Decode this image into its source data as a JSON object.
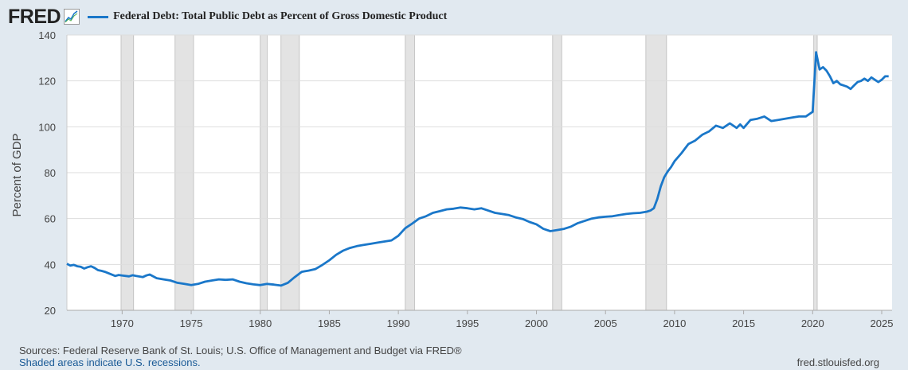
{
  "header": {
    "logo_text": "FRED",
    "legend_label": "Federal Debt: Total Public Debt as Percent of Gross Domestic Product"
  },
  "footer": {
    "sources": "Sources: Federal Reserve Bank of St. Louis; U.S. Office of Management and Budget via FRED®",
    "recessions_note": "Shaded areas indicate U.S. recessions.",
    "site": "fred.stlouisfed.org"
  },
  "colors": {
    "line": "#1a77c9",
    "recession": "#e3e3e3",
    "grid": "#dddddd"
  },
  "chart_data": {
    "type": "line",
    "title": "Federal Debt: Total Public Debt as Percent of Gross Domestic Product",
    "xlabel": "",
    "ylabel": "Percent of GDP",
    "xlim": [
      1966.0,
      2025.75
    ],
    "ylim": [
      20,
      140
    ],
    "yticks": [
      20,
      40,
      60,
      80,
      100,
      120,
      140
    ],
    "xticks": [
      1970,
      1975,
      1980,
      1985,
      1990,
      1995,
      2000,
      2005,
      2010,
      2015,
      2020,
      2025
    ],
    "grid": true,
    "recessions": [
      [
        1969.92,
        1970.83
      ],
      [
        1973.83,
        1975.17
      ],
      [
        1980.0,
        1980.5
      ],
      [
        1981.5,
        1982.83
      ],
      [
        1990.5,
        1991.17
      ],
      [
        2001.17,
        2001.83
      ],
      [
        2007.92,
        2009.42
      ],
      [
        2020.08,
        2020.33
      ]
    ],
    "series": [
      {
        "name": "Federal Debt: Total Public Debt as Percent of Gross Domestic Product",
        "x": [
          1966.0,
          1966.25,
          1966.5,
          1966.75,
          1967.0,
          1967.25,
          1967.5,
          1967.75,
          1968.0,
          1968.25,
          1968.5,
          1968.75,
          1969.0,
          1969.5,
          1969.75,
          1970.0,
          1970.5,
          1970.75,
          1971.0,
          1971.5,
          1971.75,
          1972.0,
          1972.5,
          1973.0,
          1973.5,
          1974.0,
          1974.5,
          1975.0,
          1975.5,
          1976.0,
          1976.5,
          1977.0,
          1977.5,
          1978.0,
          1978.5,
          1979.0,
          1979.5,
          1980.0,
          1980.5,
          1981.0,
          1981.5,
          1982.0,
          1982.5,
          1983.0,
          1983.5,
          1984.0,
          1984.5,
          1985.0,
          1985.5,
          1986.0,
          1986.5,
          1987.0,
          1987.5,
          1988.0,
          1988.5,
          1989.0,
          1989.5,
          1990.0,
          1990.5,
          1991.0,
          1991.5,
          1992.0,
          1992.5,
          1993.0,
          1993.5,
          1994.0,
          1994.5,
          1995.0,
          1995.5,
          1996.0,
          1996.5,
          1997.0,
          1997.5,
          1998.0,
          1998.5,
          1999.0,
          1999.5,
          2000.0,
          2000.5,
          2001.0,
          2001.5,
          2002.0,
          2002.5,
          2003.0,
          2003.5,
          2004.0,
          2004.5,
          2005.0,
          2005.5,
          2006.0,
          2006.5,
          2007.0,
          2007.5,
          2008.0,
          2008.25,
          2008.5,
          2008.75,
          2009.0,
          2009.25,
          2009.5,
          2009.75,
          2010.0,
          2010.5,
          2011.0,
          2011.5,
          2012.0,
          2012.5,
          2013.0,
          2013.5,
          2014.0,
          2014.25,
          2014.5,
          2014.75,
          2015.0,
          2015.5,
          2016.0,
          2016.25,
          2016.5,
          2017.0,
          2017.5,
          2018.0,
          2018.5,
          2019.0,
          2019.5,
          2020.0,
          2020.25,
          2020.5,
          2020.75,
          2021.0,
          2021.25,
          2021.5,
          2021.75,
          2022.0,
          2022.25,
          2022.5,
          2022.75,
          2023.0,
          2023.25,
          2023.5,
          2023.75,
          2024.0,
          2024.25,
          2024.5,
          2024.75,
          2025.0,
          2025.25,
          2025.5
        ],
        "values": [
          40.3,
          39.5,
          39.8,
          39.2,
          39.0,
          38.2,
          38.8,
          39.2,
          38.5,
          37.5,
          37.2,
          36.8,
          36.2,
          35.0,
          35.4,
          35.2,
          34.8,
          35.3,
          35.0,
          34.5,
          35.2,
          35.6,
          34.0,
          33.5,
          33.0,
          32.0,
          31.5,
          31.0,
          31.5,
          32.5,
          33.0,
          33.5,
          33.3,
          33.5,
          32.5,
          31.8,
          31.3,
          31.0,
          31.5,
          31.2,
          30.8,
          32.0,
          34.5,
          36.8,
          37.3,
          38.0,
          39.8,
          41.8,
          44.2,
          46.0,
          47.2,
          48.0,
          48.5,
          49.0,
          49.5,
          50.0,
          50.5,
          52.5,
          55.8,
          57.8,
          60.0,
          61.0,
          62.5,
          63.2,
          64.0,
          64.3,
          64.8,
          64.5,
          64.0,
          64.5,
          63.5,
          62.5,
          62.0,
          61.5,
          60.5,
          59.8,
          58.5,
          57.5,
          55.5,
          54.5,
          55.0,
          55.5,
          56.5,
          58.0,
          59.0,
          60.0,
          60.5,
          60.8,
          61.0,
          61.5,
          62.0,
          62.3,
          62.5,
          63.0,
          63.5,
          64.5,
          68.5,
          74.0,
          78.0,
          80.5,
          82.5,
          85.0,
          88.5,
          92.5,
          94.0,
          96.5,
          98.0,
          100.5,
          99.5,
          101.5,
          100.5,
          99.5,
          101.0,
          99.5,
          103.0,
          103.5,
          104.0,
          104.5,
          102.5,
          103.0,
          103.5,
          104.0,
          104.5,
          104.5,
          106.5,
          132.5,
          125.0,
          126.0,
          124.5,
          122.0,
          119.0,
          120.0,
          118.5,
          118.0,
          117.5,
          116.5,
          118.0,
          119.5,
          120.0,
          121.0,
          120.0,
          121.5,
          120.5,
          119.5,
          120.5,
          122.0,
          122.0
        ]
      }
    ]
  }
}
